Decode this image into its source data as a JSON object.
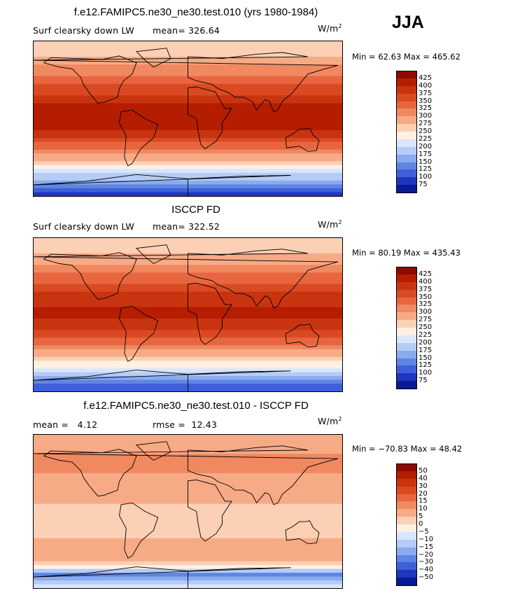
{
  "season": "JJA",
  "panels": [
    {
      "title": "f.e12.FAMIPC5.ne30_ne30.test.010 (yrs 1980-1984)",
      "left_label": "Surf clearsky down LW",
      "mid_label": "mean=",
      "mid_value": "326.64",
      "units": "W/m",
      "units_exp": "2",
      "minmax": "Min =   62.63 Max =  465.62"
    },
    {
      "title": "ISCCP FD",
      "left_label": "Surf clearsky down LW",
      "mid_label": "mean=",
      "mid_value": "322.52",
      "units": "W/m",
      "units_exp": "2",
      "minmax": "Min =   80.19 Max =  435.43"
    },
    {
      "title": "f.e12.FAMIPC5.ne30_ne30.test.010 - ISCCP FD",
      "left_label": "mean =",
      "left_value": "4.12",
      "mid_label": "rmse =",
      "mid_value": "12.43",
      "units": "W/m",
      "units_exp": "2",
      "minmax": "Min = −70.83 Max =   48.42"
    }
  ],
  "chart_data": [
    {
      "type": "heatmap",
      "title": "f.e12.FAMIPC5.ne30_ne30.test.010 (yrs 1980-1984)",
      "variable": "Surf clearsky down LW",
      "units": "W/m^2",
      "mean": 326.64,
      "min": 62.63,
      "max": 465.62,
      "projection": "global cylindrical equidistant, centered 180",
      "zonal_profile": {
        "lat": [
          80,
          60,
          45,
          30,
          15,
          0,
          -15,
          -30,
          -45,
          -60,
          -75,
          -85
        ],
        "value": [
          260,
          305,
          335,
          370,
          405,
          415,
          395,
          345,
          290,
          225,
          150,
          90
        ]
      },
      "colorbar_levels": [
        "425",
        "400",
        "375",
        "350",
        "325",
        "300",
        "275",
        "250",
        "225",
        "200",
        "175",
        "150",
        "125",
        "100",
        "75"
      ],
      "colorbar_colors": [
        "#8c0a00",
        "#b51d00",
        "#c93410",
        "#da4a22",
        "#e76640",
        "#f08860",
        "#f7aa86",
        "#fbd0b4",
        "#fff0e4",
        "#d9e6fb",
        "#b4ccf6",
        "#8aabef",
        "#5f85e4",
        "#3e5fd8",
        "#1e36c0",
        "#0a1a94"
      ]
    },
    {
      "type": "heatmap",
      "title": "ISCCP FD",
      "variable": "Surf clearsky down LW",
      "units": "W/m^2",
      "mean": 322.52,
      "min": 80.19,
      "max": 435.43,
      "projection": "global cylindrical equidistant, centered 180",
      "zonal_profile": {
        "lat": [
          80,
          60,
          45,
          30,
          15,
          0,
          -15,
          -30,
          -45,
          -60,
          -75,
          -85
        ],
        "value": [
          255,
          300,
          330,
          365,
          395,
          405,
          385,
          340,
          285,
          230,
          160,
          100
        ]
      },
      "colorbar_levels": [
        "425",
        "400",
        "375",
        "350",
        "325",
        "300",
        "275",
        "250",
        "225",
        "200",
        "175",
        "150",
        "125",
        "100",
        "75"
      ],
      "colorbar_colors": [
        "#8c0a00",
        "#b51d00",
        "#c93410",
        "#da4a22",
        "#e76640",
        "#f08860",
        "#f7aa86",
        "#fbd0b4",
        "#fff0e4",
        "#d9e6fb",
        "#b4ccf6",
        "#8aabef",
        "#5f85e4",
        "#3e5fd8",
        "#1e36c0",
        "#0a1a94"
      ]
    },
    {
      "type": "heatmap",
      "title": "f.e12.FAMIPC5.ne30_ne30.test.010 - ISCCP FD",
      "variable": "difference",
      "units": "W/m^2",
      "mean": 4.12,
      "rmse": 12.43,
      "min": -70.83,
      "max": 48.42,
      "projection": "global cylindrical equidistant, centered 180",
      "zonal_profile": {
        "lat": [
          80,
          60,
          45,
          30,
          15,
          0,
          -15,
          -30,
          -45,
          -60,
          -75,
          -85
        ],
        "value": [
          5,
          12,
          10,
          8,
          6,
          4,
          3,
          5,
          8,
          6,
          -25,
          -10
        ]
      },
      "colorbar_levels": [
        "50",
        "40",
        "30",
        "20",
        "15",
        "10",
        "5",
        "0",
        "−5",
        "−10",
        "−15",
        "−20",
        "−30",
        "−40",
        "−50"
      ],
      "colorbar_colors": [
        "#8c0a00",
        "#b51d00",
        "#c93410",
        "#da4a22",
        "#e76640",
        "#f08860",
        "#f7aa86",
        "#fbd0b4",
        "#fff0e4",
        "#d9e6fb",
        "#b4ccf6",
        "#8aabef",
        "#5f85e4",
        "#3e5fd8",
        "#1e36c0",
        "#0a1a94"
      ]
    }
  ]
}
